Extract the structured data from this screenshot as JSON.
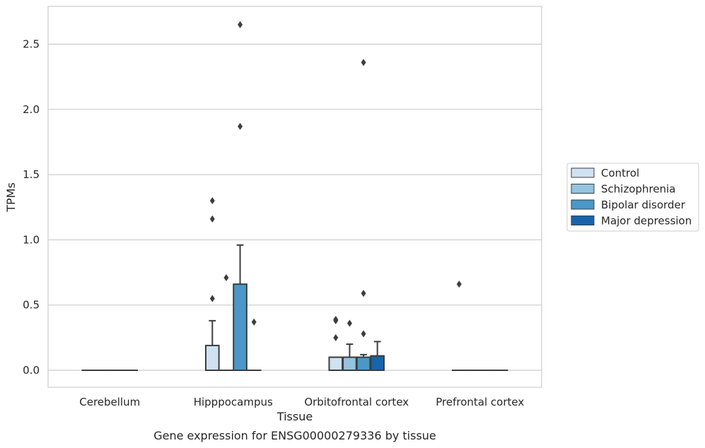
{
  "chart_data": {
    "type": "box",
    "xlabel": "Tissue",
    "ylabel": "TPMs",
    "caption": "Gene expression for ENSG00000279336 by tissue",
    "ylim": [
      -0.13,
      2.79
    ],
    "yticks": [
      0.0,
      0.5,
      1.0,
      1.5,
      2.0,
      2.5
    ],
    "ytick_labels": [
      "0.0",
      "0.5",
      "1.0",
      "1.5",
      "2.0",
      "2.5"
    ],
    "grid": "horizontal",
    "legend_position": "right",
    "categories": [
      "Cerebellum",
      "Hipppocampus",
      "Orbitofrontal cortex",
      "Prefrontal cortex"
    ],
    "series": [
      {
        "name": "Control",
        "color": "#d0e1f2"
      },
      {
        "name": "Schizophrenia",
        "color": "#94c4df"
      },
      {
        "name": "Bipolar disorder",
        "color": "#4a98c9"
      },
      {
        "name": "Major depression",
        "color": "#1764ab"
      }
    ],
    "boxes": [
      {
        "category": "Cerebellum",
        "series": "Control",
        "q1": 0,
        "median": 0,
        "q3": 0,
        "whisker_low": 0,
        "whisker_high": 0,
        "outliers": []
      },
      {
        "category": "Cerebellum",
        "series": "Schizophrenia",
        "q1": 0,
        "median": 0,
        "q3": 0,
        "whisker_low": 0,
        "whisker_high": 0,
        "outliers": []
      },
      {
        "category": "Cerebellum",
        "series": "Bipolar disorder",
        "q1": 0,
        "median": 0,
        "q3": 0,
        "whisker_low": 0,
        "whisker_high": 0,
        "outliers": []
      },
      {
        "category": "Cerebellum",
        "series": "Major depression",
        "q1": 0,
        "median": 0,
        "q3": 0,
        "whisker_low": 0,
        "whisker_high": 0,
        "outliers": []
      },
      {
        "category": "Hipppocampus",
        "series": "Control",
        "q1": 0,
        "median": 0,
        "q3": 0.19,
        "whisker_low": 0,
        "whisker_high": 0.38,
        "outliers": [
          0.55,
          1.16,
          1.3
        ]
      },
      {
        "category": "Hipppocampus",
        "series": "Schizophrenia",
        "q1": 0,
        "median": 0,
        "q3": 0,
        "whisker_low": 0,
        "whisker_high": 0,
        "outliers": [
          0.71
        ]
      },
      {
        "category": "Hipppocampus",
        "series": "Bipolar disorder",
        "q1": 0,
        "median": 0,
        "q3": 0.66,
        "whisker_low": 0,
        "whisker_high": 0.96,
        "outliers": [
          1.87,
          2.65
        ]
      },
      {
        "category": "Hipppocampus",
        "series": "Major depression",
        "q1": 0,
        "median": 0,
        "q3": 0,
        "whisker_low": 0,
        "whisker_high": 0,
        "outliers": [
          0.37
        ]
      },
      {
        "category": "Orbitofrontal cortex",
        "series": "Control",
        "q1": 0,
        "median": 0.1,
        "q3": 0.1,
        "whisker_low": 0,
        "whisker_high": 0.1,
        "outliers": [
          0.25,
          0.38,
          0.39
        ]
      },
      {
        "category": "Orbitofrontal cortex",
        "series": "Schizophrenia",
        "q1": 0,
        "median": 0.1,
        "q3": 0.1,
        "whisker_low": 0,
        "whisker_high": 0.2,
        "outliers": [
          0.36
        ]
      },
      {
        "category": "Orbitofrontal cortex",
        "series": "Bipolar disorder",
        "q1": 0,
        "median": 0.1,
        "q3": 0.1,
        "whisker_low": 0,
        "whisker_high": 0.12,
        "outliers": [
          0.28,
          0.59,
          2.36
        ]
      },
      {
        "category": "Orbitofrontal cortex",
        "series": "Major depression",
        "q1": 0,
        "median": 0.11,
        "q3": 0.11,
        "whisker_low": 0,
        "whisker_high": 0.22,
        "outliers": []
      },
      {
        "category": "Prefrontal cortex",
        "series": "Control",
        "q1": 0,
        "median": 0,
        "q3": 0,
        "whisker_low": 0,
        "whisker_high": 0,
        "outliers": [
          0.66
        ]
      },
      {
        "category": "Prefrontal cortex",
        "series": "Schizophrenia",
        "q1": 0,
        "median": 0,
        "q3": 0,
        "whisker_low": 0,
        "whisker_high": 0,
        "outliers": []
      },
      {
        "category": "Prefrontal cortex",
        "series": "Bipolar disorder",
        "q1": 0,
        "median": 0,
        "q3": 0,
        "whisker_low": 0,
        "whisker_high": 0,
        "outliers": []
      },
      {
        "category": "Prefrontal cortex",
        "series": "Major depression",
        "q1": 0,
        "median": 0,
        "q3": 0,
        "whisker_low": 0,
        "whisker_high": 0,
        "outliers": []
      }
    ],
    "styling": {
      "grid_color": "#cccccc",
      "frame_color": "#cccccc",
      "line_color": "#3d3d3d",
      "background": "#ffffff"
    }
  }
}
